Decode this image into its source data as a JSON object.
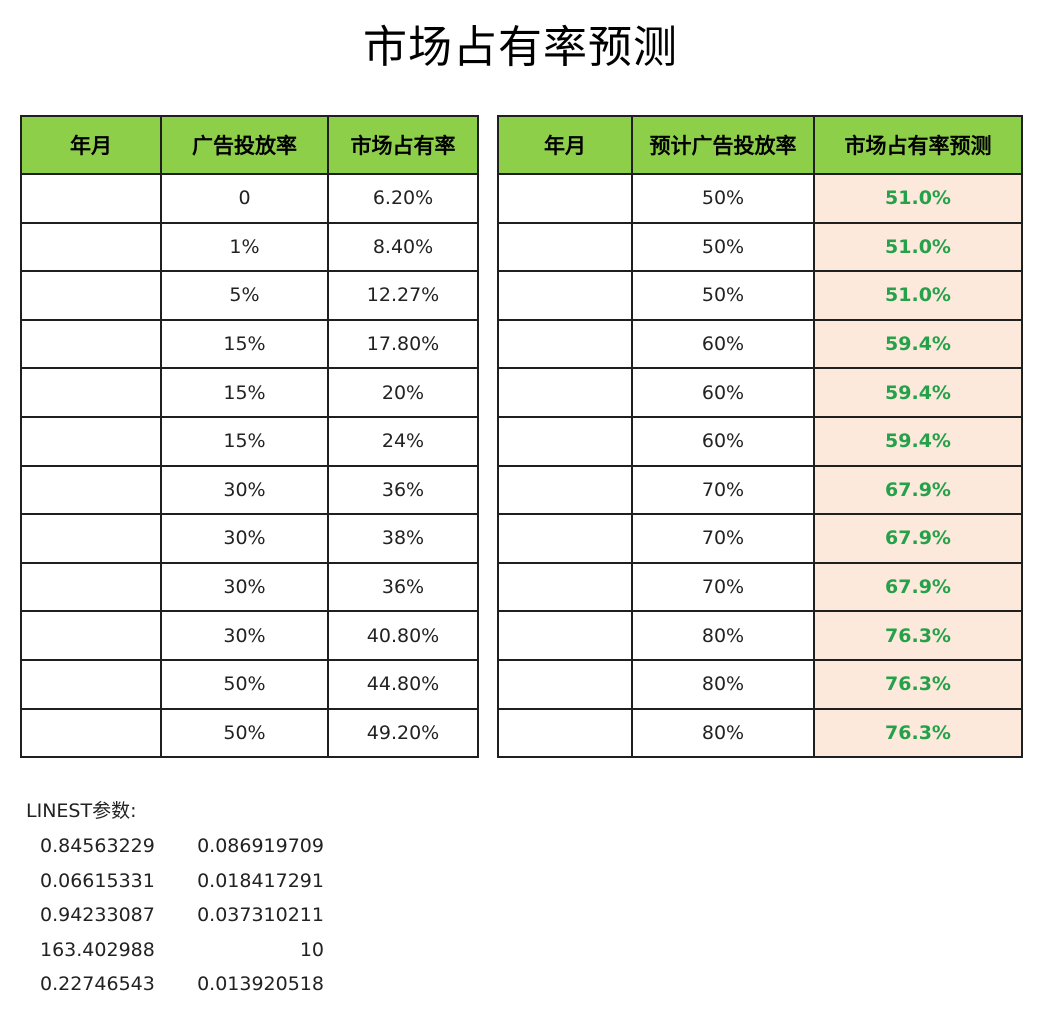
{
  "title": "市场占有率预测",
  "left_table": {
    "headers": [
      "年月",
      "广告投放率",
      "市场占有率"
    ],
    "rows": [
      [
        "",
        "0",
        "6.20%"
      ],
      [
        "",
        "1%",
        "8.40%"
      ],
      [
        "",
        "5%",
        "12.27%"
      ],
      [
        "",
        "15%",
        "17.80%"
      ],
      [
        "",
        "15%",
        "20%"
      ],
      [
        "",
        "15%",
        "24%"
      ],
      [
        "",
        "30%",
        "36%"
      ],
      [
        "",
        "30%",
        "38%"
      ],
      [
        "",
        "30%",
        "36%"
      ],
      [
        "",
        "30%",
        "40.80%"
      ],
      [
        "",
        "50%",
        "44.80%"
      ],
      [
        "",
        "50%",
        "49.20%"
      ]
    ]
  },
  "right_table": {
    "headers": [
      "年月",
      "预计广告投放率",
      "市场占有率预测"
    ],
    "rows": [
      [
        "",
        "50%",
        "51.0%"
      ],
      [
        "",
        "50%",
        "51.0%"
      ],
      [
        "",
        "50%",
        "51.0%"
      ],
      [
        "",
        "60%",
        "59.4%"
      ],
      [
        "",
        "60%",
        "59.4%"
      ],
      [
        "",
        "60%",
        "59.4%"
      ],
      [
        "",
        "70%",
        "67.9%"
      ],
      [
        "",
        "70%",
        "67.9%"
      ],
      [
        "",
        "70%",
        "67.9%"
      ],
      [
        "",
        "80%",
        "76.3%"
      ],
      [
        "",
        "80%",
        "76.3%"
      ],
      [
        "",
        "80%",
        "76.3%"
      ]
    ]
  },
  "linest": {
    "label": "LINEST参数:",
    "rows": [
      [
        "0.84563229",
        "0.086919709"
      ],
      [
        "0.06615331",
        "0.018417291"
      ],
      [
        "0.94233087",
        "0.037310211"
      ],
      [
        "163.402988",
        "10"
      ],
      [
        "0.22746543",
        "0.013920518"
      ]
    ]
  },
  "colors": {
    "header_fill": "#8ecf4a",
    "forecast_fill": "#fde9dc",
    "forecast_text": "#25a14a",
    "border": "#1f1f1f"
  }
}
